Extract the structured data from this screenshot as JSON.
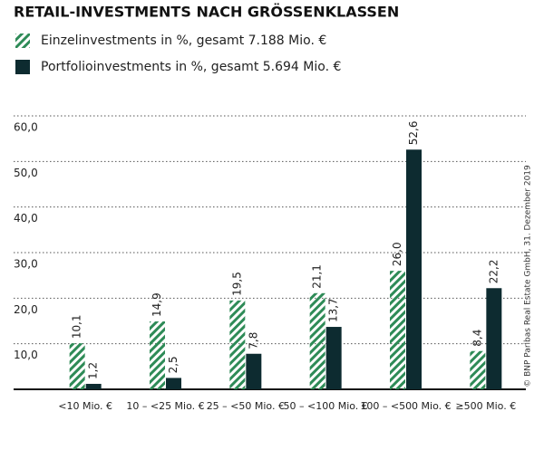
{
  "chart_data": {
    "type": "bar",
    "title": "RETAIL-INVESTMENTS NACH GRÖSSENKLASSEN",
    "source": "© BNP Paribas Real Estate GmbH, 31. Dezember 2019",
    "categories": [
      "<10 Mio. €",
      "10 – <25 Mio. €",
      "25 – <50 Mio. €",
      "50 – <100 Mio. €",
      "100 – <500 Mio. €",
      "≥500 Mio. €"
    ],
    "series": [
      {
        "name": "Einzelinvestments in %, gesamt 7.188 Mio. €",
        "color": "#2e8b57",
        "hatch": true,
        "values": [
          10.1,
          14.9,
          19.5,
          21.1,
          26.0,
          8.4
        ],
        "value_labels": [
          "10,1",
          "14,9",
          "19,5",
          "21,1",
          "26,0",
          "8,4"
        ]
      },
      {
        "name": "Portfolioinvestments in %, gesamt 5.694 Mio. €",
        "color": "#0d2b30",
        "hatch": false,
        "values": [
          1.2,
          2.5,
          7.8,
          13.7,
          52.6,
          22.2
        ],
        "value_labels": [
          "1,2",
          "2,5",
          "7,8",
          "13,7",
          "52,6",
          "22,2"
        ]
      }
    ],
    "ylim": [
      0,
      60
    ],
    "yticks": [
      {
        "value": 10,
        "label": "10,0"
      },
      {
        "value": 20,
        "label": "20,0"
      },
      {
        "value": 30,
        "label": "30,0"
      },
      {
        "value": 40,
        "label": "40,0"
      },
      {
        "value": 50,
        "label": "50,0"
      },
      {
        "value": 60,
        "label": "60,0"
      }
    ],
    "grid": true
  }
}
